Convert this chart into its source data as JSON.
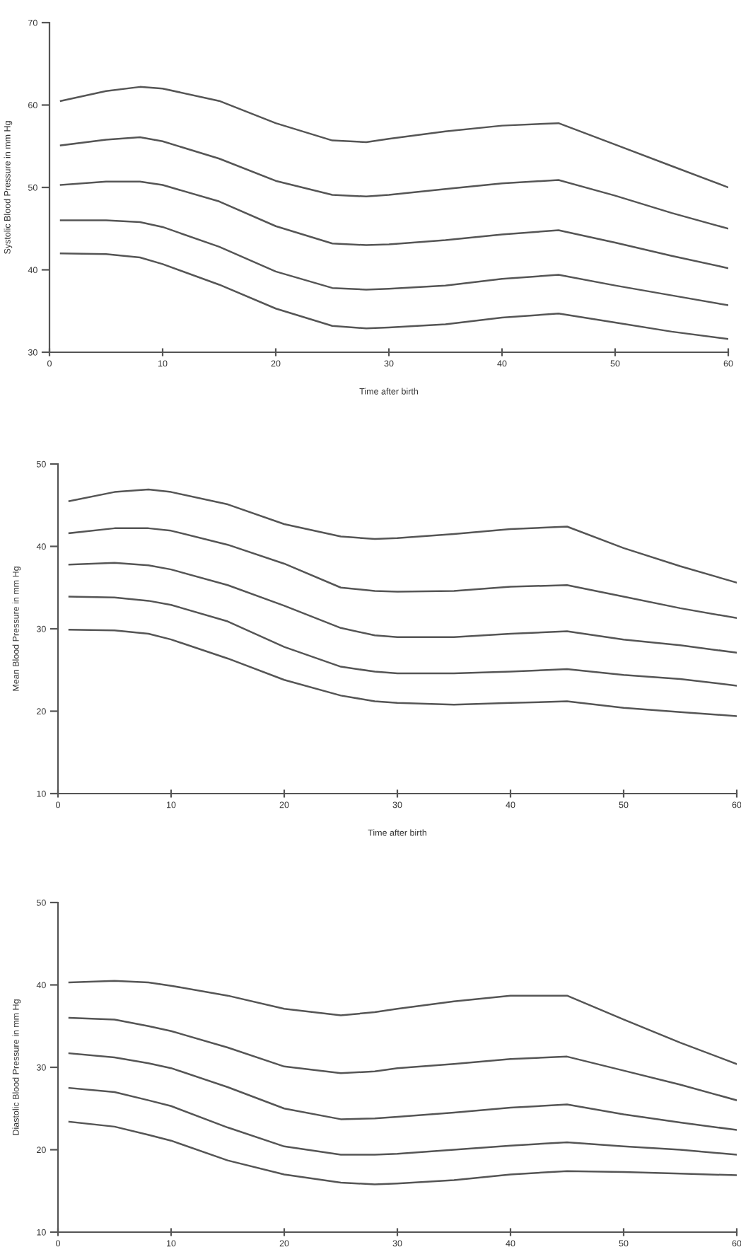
{
  "chart_data": [
    {
      "type": "line",
      "xlabel": "Time after birth",
      "ylabel": "Systolic Blood Pressure in mm Hg",
      "xlim": [
        0,
        60
      ],
      "ylim": [
        30,
        70
      ],
      "xticks": [
        0,
        10,
        20,
        30,
        40,
        50,
        60
      ],
      "yticks": [
        30,
        40,
        50,
        60,
        70
      ],
      "x": [
        1,
        5,
        8,
        10,
        15,
        20,
        25,
        28,
        30,
        35,
        40,
        45,
        50,
        55,
        60
      ],
      "series": [
        {
          "color": "#555555",
          "values": [
            60.5,
            61.7,
            62.2,
            62.0,
            60.5,
            57.8,
            55.7,
            55.5,
            55.9,
            56.8,
            57.5,
            57.8,
            55.2,
            52.6,
            50.0
          ]
        },
        {
          "color": "#555555",
          "values": [
            55.1,
            55.8,
            56.1,
            55.6,
            53.5,
            50.8,
            49.1,
            48.9,
            49.1,
            49.8,
            50.5,
            50.9,
            49.0,
            46.9,
            45.0
          ]
        },
        {
          "color": "#555555",
          "values": [
            50.3,
            50.7,
            50.7,
            50.3,
            48.3,
            45.3,
            43.2,
            43.0,
            43.1,
            43.6,
            44.3,
            44.8,
            43.3,
            41.7,
            40.2
          ]
        },
        {
          "color": "#555555",
          "values": [
            46.0,
            46.0,
            45.8,
            45.2,
            42.8,
            39.8,
            37.8,
            37.6,
            37.7,
            38.1,
            38.9,
            39.4,
            38.1,
            36.9,
            35.7
          ]
        },
        {
          "color": "#555555",
          "values": [
            42.0,
            41.9,
            41.5,
            40.7,
            38.2,
            35.3,
            33.2,
            32.9,
            33.0,
            33.4,
            34.2,
            34.7,
            33.6,
            32.5,
            31.6
          ]
        }
      ]
    },
    {
      "type": "line",
      "xlabel": "Time after birth",
      "ylabel": "Mean Blood Pressure in mm Hg",
      "xlim": [
        0,
        60
      ],
      "ylim": [
        10,
        50
      ],
      "xticks": [
        0,
        10,
        20,
        30,
        40,
        50,
        60
      ],
      "yticks": [
        10,
        20,
        30,
        40,
        50
      ],
      "x": [
        1,
        5,
        8,
        10,
        15,
        20,
        25,
        28,
        30,
        35,
        40,
        45,
        50,
        55,
        60
      ],
      "series": [
        {
          "color": "#555555",
          "values": [
            45.5,
            46.6,
            46.9,
            46.6,
            45.1,
            42.7,
            41.2,
            40.9,
            41.0,
            41.5,
            42.1,
            42.4,
            39.8,
            37.6,
            35.6
          ]
        },
        {
          "color": "#555555",
          "values": [
            41.6,
            42.2,
            42.2,
            41.9,
            40.2,
            37.9,
            35.0,
            34.6,
            34.5,
            34.6,
            35.1,
            35.3,
            33.9,
            32.5,
            31.3
          ]
        },
        {
          "color": "#555555",
          "values": [
            37.8,
            38.0,
            37.7,
            37.2,
            35.3,
            32.8,
            30.1,
            29.2,
            29.0,
            29.0,
            29.4,
            29.7,
            28.7,
            28.0,
            27.1
          ]
        },
        {
          "color": "#555555",
          "values": [
            33.9,
            33.8,
            33.4,
            32.9,
            30.9,
            27.8,
            25.4,
            24.8,
            24.6,
            24.6,
            24.8,
            25.1,
            24.4,
            23.9,
            23.1
          ]
        },
        {
          "color": "#555555",
          "values": [
            29.9,
            29.8,
            29.4,
            28.7,
            26.4,
            23.8,
            21.9,
            21.2,
            21.0,
            20.8,
            21.0,
            21.2,
            20.4,
            19.9,
            19.4
          ]
        }
      ]
    },
    {
      "type": "line",
      "ylabel": "Diastolic Blood Pressure in mm Hg",
      "xlim": [
        0,
        60
      ],
      "ylim": [
        10,
        50
      ],
      "xticks": [
        0,
        10,
        20,
        30,
        40,
        50,
        60
      ],
      "yticks": [
        10,
        20,
        30,
        40,
        50
      ],
      "x": [
        1,
        5,
        8,
        10,
        15,
        20,
        25,
        28,
        30,
        35,
        40,
        45,
        50,
        55,
        60
      ],
      "series": [
        {
          "color": "#555555",
          "values": [
            40.3,
            40.5,
            40.3,
            39.9,
            38.7,
            37.1,
            36.3,
            36.7,
            37.1,
            38.0,
            38.7,
            38.7,
            35.8,
            33.0,
            30.4
          ]
        },
        {
          "color": "#555555",
          "values": [
            36.0,
            35.8,
            35.0,
            34.4,
            32.4,
            30.1,
            29.3,
            29.5,
            29.9,
            30.4,
            31.0,
            31.3,
            29.6,
            27.9,
            26.0
          ]
        },
        {
          "color": "#555555",
          "values": [
            31.7,
            31.2,
            30.5,
            29.9,
            27.6,
            25.0,
            23.7,
            23.8,
            24.0,
            24.5,
            25.1,
            25.5,
            24.3,
            23.3,
            22.4
          ]
        },
        {
          "color": "#555555",
          "values": [
            27.5,
            27.0,
            26.0,
            25.3,
            22.7,
            20.4,
            19.4,
            19.4,
            19.5,
            20.0,
            20.5,
            20.9,
            20.4,
            20.0,
            19.4
          ]
        },
        {
          "color": "#555555",
          "values": [
            23.4,
            22.8,
            21.8,
            21.1,
            18.7,
            17.0,
            16.0,
            15.8,
            15.9,
            16.3,
            17.0,
            17.4,
            17.3,
            17.1,
            16.9
          ]
        }
      ]
    }
  ]
}
